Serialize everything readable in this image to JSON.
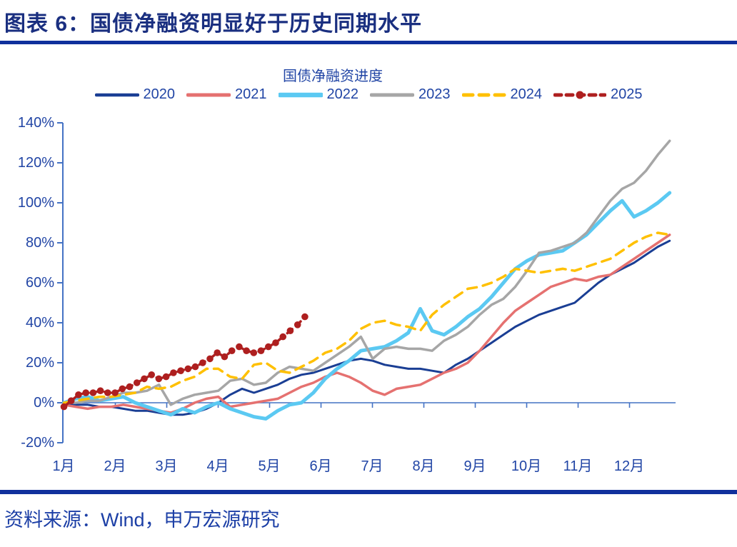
{
  "header": {
    "title": "图表 6：国债净融资明显好于历史同期水平"
  },
  "chart": {
    "title": "国债净融资进度",
    "y_ticks": [
      "140%",
      "120%",
      "100%",
      "80%",
      "60%",
      "40%",
      "20%",
      "0%",
      "-20%"
    ],
    "x_ticks": [
      "1月",
      "2月",
      "3月",
      "4月",
      "5月",
      "6月",
      "7月",
      "8月",
      "9月",
      "10月",
      "11月",
      "12月"
    ]
  },
  "legend": {
    "items": [
      {
        "label": "2020"
      },
      {
        "label": "2021"
      },
      {
        "label": "2022"
      },
      {
        "label": "2023"
      },
      {
        "label": "2024"
      },
      {
        "label": "2025"
      }
    ]
  },
  "footer": {
    "source": "资料来源：Wind，申万宏源研究"
  },
  "colors": {
    "axis": "#4472C4",
    "title": "#1A2F80",
    "rule": "#10309C",
    "label": "#2145A5",
    "footer": "#1C3FA6"
  },
  "chart_data": {
    "type": "line",
    "title": "国债净融资进度",
    "x_categories": [
      "1月",
      "2月",
      "3月",
      "4月",
      "5月",
      "6月",
      "7月",
      "8月",
      "9月",
      "10月",
      "11月",
      "12月"
    ],
    "ylim": [
      -20,
      140
    ],
    "y_tick_step": 20,
    "y_unit": "%",
    "x_resolution": "weekly (values estimated from chart, in percent)",
    "legend_position": "top",
    "grid": "zero-line only",
    "series": [
      {
        "name": "2020",
        "color": "#1A3E94",
        "width": 3,
        "x_start": 0,
        "x_step": 0.231,
        "values": [
          0,
          -1,
          -1,
          -2,
          -2,
          -3,
          -4,
          -4,
          -5,
          -6,
          -6,
          -5,
          -3,
          0,
          4,
          7,
          5,
          7,
          9,
          12,
          14,
          15,
          17,
          19,
          21,
          22,
          21,
          19,
          18,
          17,
          17,
          16,
          15,
          19,
          22,
          26,
          30,
          34,
          38,
          41,
          44,
          46,
          48,
          50,
          55,
          60,
          64,
          67,
          70,
          74,
          78,
          81
        ]
      },
      {
        "name": "2021",
        "color": "#E57170",
        "width": 3.5,
        "x_start": 0,
        "x_step": 0.231,
        "values": [
          -1,
          -2,
          -3,
          -2,
          -2,
          -1,
          -2,
          -3,
          -4,
          -5,
          -3,
          0,
          2,
          3,
          -2,
          -1,
          0,
          1,
          2,
          5,
          8,
          10,
          13,
          15,
          13,
          10,
          6,
          4,
          7,
          8,
          9,
          12,
          15,
          17,
          20,
          26,
          33,
          40,
          46,
          50,
          54,
          58,
          60,
          62,
          61,
          63,
          64,
          68,
          72,
          76,
          80,
          84
        ]
      },
      {
        "name": "2022",
        "color": "#5BC9F2",
        "width": 5,
        "x_start": 0,
        "x_step": 0.231,
        "values": [
          0,
          2,
          3,
          1,
          2,
          3,
          0,
          -2,
          -4,
          -6,
          -3,
          -5,
          -2,
          0,
          -3,
          -5,
          -7,
          -8,
          -4,
          -1,
          0,
          5,
          12,
          17,
          21,
          26,
          27,
          28,
          31,
          35,
          47,
          36,
          34,
          38,
          43,
          47,
          53,
          60,
          67,
          71,
          74,
          75,
          76,
          80,
          84,
          90,
          96,
          101,
          93,
          96,
          100,
          105
        ]
      },
      {
        "name": "2023",
        "color": "#A6A6A6",
        "width": 3.5,
        "x_start": 0,
        "x_step": 0.231,
        "values": [
          0,
          0,
          1,
          1,
          3,
          5,
          5,
          6,
          9,
          -1,
          2,
          4,
          5,
          6,
          11,
          12,
          9,
          10,
          15,
          18,
          17,
          16,
          20,
          24,
          28,
          33,
          22,
          27,
          28,
          27,
          27,
          26,
          31,
          34,
          38,
          44,
          49,
          52,
          58,
          66,
          75,
          76,
          78,
          80,
          85,
          93,
          101,
          107,
          110,
          116,
          124,
          131
        ]
      },
      {
        "name": "2024",
        "color": "#FFC000",
        "width": 3.5,
        "dash": "13 9",
        "x_start": 0,
        "x_step": 0.231,
        "values": [
          0,
          1,
          2,
          3,
          3,
          4,
          5,
          8,
          7,
          8,
          11,
          13,
          17,
          17,
          13,
          12,
          19,
          20,
          16,
          15,
          18,
          21,
          25,
          27,
          31,
          37,
          40,
          41,
          39,
          38,
          36,
          44,
          49,
          53,
          57,
          58,
          60,
          63,
          67,
          66,
          65,
          66,
          67,
          66,
          68,
          70,
          72,
          76,
          80,
          83,
          85,
          84
        ]
      },
      {
        "name": "2025",
        "color": "#AE1F1F",
        "width": 3.5,
        "dash": "9 7",
        "markers": true,
        "x_start": 0,
        "x_step": 0.142,
        "values": [
          -2,
          1,
          4,
          5,
          5,
          6,
          5,
          5,
          7,
          8,
          10,
          12,
          14,
          12,
          13,
          15,
          16,
          17,
          18,
          20,
          22,
          25,
          23,
          26,
          28,
          26,
          25,
          26,
          28,
          30,
          33,
          36,
          39,
          43
        ]
      }
    ]
  }
}
